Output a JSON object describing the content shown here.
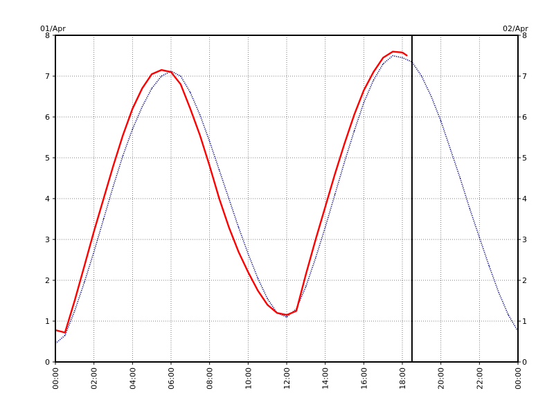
{
  "header": {
    "date_start": "01/Apr",
    "date_end": "02/Apr"
  },
  "chart_data": {
    "type": "line",
    "xlabel": "",
    "ylabel": "",
    "xlim": [
      "00:00",
      "24:00"
    ],
    "ylim": [
      0,
      8
    ],
    "grid": true,
    "legend": "none",
    "x_ticks": [
      "00:00",
      "02:00",
      "04:00",
      "06:00",
      "08:00",
      "10:00",
      "12:00",
      "14:00",
      "16:00",
      "18:00",
      "20:00",
      "22:00",
      "00:00"
    ],
    "y_ticks": [
      "0",
      "1",
      "2",
      "3",
      "4",
      "5",
      "6",
      "7",
      "8"
    ],
    "marker_time": "18:30",
    "series": [
      {
        "style": "dotted",
        "color": "#00008b",
        "x": [
          "00:00",
          "00:30",
          "01:00",
          "01:30",
          "02:00",
          "02:30",
          "03:00",
          "03:30",
          "04:00",
          "04:30",
          "05:00",
          "05:30",
          "06:00",
          "06:30",
          "07:00",
          "07:30",
          "08:00",
          "08:30",
          "09:00",
          "09:30",
          "10:00",
          "10:30",
          "11:00",
          "11:30",
          "12:00",
          "12:30",
          "13:00",
          "13:30",
          "14:00",
          "14:30",
          "15:00",
          "15:30",
          "16:00",
          "16:30",
          "17:00",
          "17:30",
          "18:00",
          "18:30",
          "19:00",
          "19:30",
          "20:00",
          "20:30",
          "21:00",
          "21:30",
          "22:00",
          "22:30",
          "23:00",
          "23:30",
          "24:00"
        ],
        "y": [
          0.45,
          0.65,
          1.25,
          1.95,
          2.7,
          3.5,
          4.3,
          5.05,
          5.7,
          6.25,
          6.7,
          7.0,
          7.12,
          7.0,
          6.6,
          6.05,
          5.4,
          4.7,
          4.0,
          3.3,
          2.65,
          2.05,
          1.55,
          1.2,
          1.1,
          1.3,
          1.85,
          2.55,
          3.3,
          4.1,
          4.9,
          5.65,
          6.35,
          6.9,
          7.3,
          7.5,
          7.45,
          7.35,
          7.0,
          6.5,
          5.9,
          5.2,
          4.5,
          3.75,
          3.05,
          2.35,
          1.7,
          1.15,
          0.75
        ]
      },
      {
        "style": "solid",
        "color": "#ff0000",
        "x": [
          "00:00",
          "00:30",
          "01:00",
          "01:30",
          "02:00",
          "02:30",
          "03:00",
          "03:30",
          "04:00",
          "04:30",
          "05:00",
          "05:30",
          "06:00",
          "06:30",
          "07:00",
          "07:30",
          "08:00",
          "08:30",
          "09:00",
          "09:30",
          "10:00",
          "10:30",
          "11:00",
          "11:30",
          "12:00",
          "12:30",
          "13:00",
          "13:30",
          "14:00",
          "14:30",
          "15:00",
          "15:30",
          "16:00",
          "16:30",
          "17:00",
          "17:30",
          "18:00",
          "18:15"
        ],
        "y": [
          0.78,
          0.72,
          1.5,
          2.35,
          3.2,
          4.0,
          4.8,
          5.55,
          6.2,
          6.7,
          7.05,
          7.15,
          7.1,
          6.8,
          6.2,
          5.55,
          4.8,
          4.0,
          3.3,
          2.7,
          2.2,
          1.75,
          1.4,
          1.2,
          1.15,
          1.25,
          2.15,
          3.0,
          3.8,
          4.6,
          5.35,
          6.05,
          6.65,
          7.1,
          7.45,
          7.6,
          7.58,
          7.5
        ]
      }
    ]
  }
}
